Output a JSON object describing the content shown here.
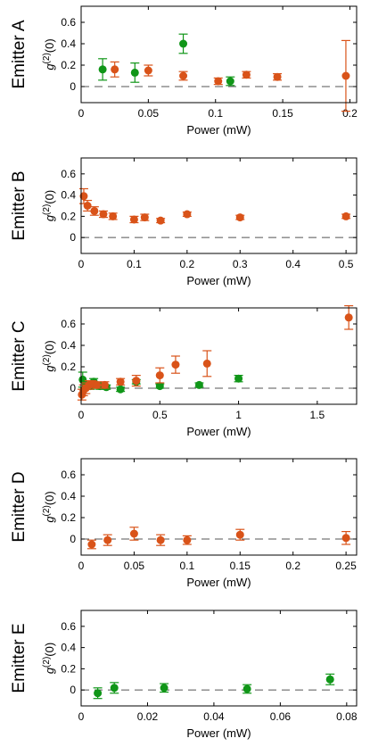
{
  "colors": {
    "orange": "#d95319",
    "green": "#109618",
    "baseline": "#555555"
  },
  "chart_data": [
    {
      "type": "scatter",
      "panel": "Emitter A",
      "xlabel": "Power (mW)",
      "ylabel": "g(2)(0)",
      "xlim": [
        0,
        0.205
      ],
      "ylim": [
        -0.15,
        0.75
      ],
      "xticks": [
        0,
        0.05,
        0.1,
        0.15,
        0.2
      ],
      "xtick_labels": [
        "0",
        "0.05",
        "0.1",
        "0.15",
        "0.2"
      ],
      "yticks": [
        0,
        0.2,
        0.4,
        0.6
      ],
      "ytick_labels": [
        "0",
        "0.2",
        "0.4",
        "0.6"
      ],
      "baseline": 0,
      "series": [
        {
          "color": "green",
          "points": [
            {
              "x": 0.016,
              "y": 0.16,
              "err": 0.1
            },
            {
              "x": 0.04,
              "y": 0.13,
              "err": 0.09
            },
            {
              "x": 0.076,
              "y": 0.4,
              "err": 0.09
            },
            {
              "x": 0.111,
              "y": 0.05,
              "err": 0.04
            }
          ]
        },
        {
          "color": "orange",
          "points": [
            {
              "x": 0.025,
              "y": 0.16,
              "err": 0.07
            },
            {
              "x": 0.05,
              "y": 0.15,
              "err": 0.05
            },
            {
              "x": 0.076,
              "y": 0.1,
              "err": 0.04
            },
            {
              "x": 0.102,
              "y": 0.05,
              "err": 0.03
            },
            {
              "x": 0.123,
              "y": 0.11,
              "err": 0.03
            },
            {
              "x": 0.146,
              "y": 0.09,
              "err": 0.03
            },
            {
              "x": 0.197,
              "y": 0.1,
              "err": 0.33
            }
          ]
        }
      ]
    },
    {
      "type": "scatter",
      "panel": "Emitter B",
      "xlabel": "Power (mW)",
      "ylabel": "g(2)(0)",
      "xlim": [
        0,
        0.52
      ],
      "ylim": [
        -0.15,
        0.75
      ],
      "xticks": [
        0,
        0.1,
        0.2,
        0.3,
        0.4,
        0.5
      ],
      "xtick_labels": [
        "0",
        "0.1",
        "0.2",
        "0.3",
        "0.4",
        "0.5"
      ],
      "yticks": [
        0,
        0.2,
        0.4,
        0.6
      ],
      "ytick_labels": [
        "0",
        "0.2",
        "0.4",
        "0.6"
      ],
      "baseline": 0,
      "series": [
        {
          "color": "orange",
          "points": [
            {
              "x": 0.005,
              "y": 0.39,
              "err": 0.07
            },
            {
              "x": 0.012,
              "y": 0.3,
              "err": 0.05
            },
            {
              "x": 0.025,
              "y": 0.25,
              "err": 0.04
            },
            {
              "x": 0.042,
              "y": 0.22,
              "err": 0.03
            },
            {
              "x": 0.06,
              "y": 0.2,
              "err": 0.03
            },
            {
              "x": 0.1,
              "y": 0.17,
              "err": 0.03
            },
            {
              "x": 0.12,
              "y": 0.19,
              "err": 0.03
            },
            {
              "x": 0.15,
              "y": 0.16,
              "err": 0.02
            },
            {
              "x": 0.2,
              "y": 0.22,
              "err": 0.02
            },
            {
              "x": 0.3,
              "y": 0.19,
              "err": 0.02
            },
            {
              "x": 0.5,
              "y": 0.2,
              "err": 0.02
            }
          ]
        }
      ]
    },
    {
      "type": "scatter",
      "panel": "Emitter C",
      "xlabel": "Power (mW)",
      "ylabel": "g(2)(0)",
      "xlim": [
        0,
        1.75
      ],
      "ylim": [
        -0.15,
        0.75
      ],
      "xticks": [
        0,
        0.5,
        1,
        1.5
      ],
      "xtick_labels": [
        "0",
        "0.5",
        "1",
        "1.5"
      ],
      "yticks": [
        0,
        0.2,
        0.4,
        0.6
      ],
      "ytick_labels": [
        "0",
        "0.2",
        "0.4",
        "0.6"
      ],
      "baseline": 0,
      "series": [
        {
          "color": "green",
          "points": [
            {
              "x": 0.01,
              "y": 0.08,
              "err": 0.07
            },
            {
              "x": 0.03,
              "y": 0.03,
              "err": 0.04
            },
            {
              "x": 0.06,
              "y": 0.02,
              "err": 0.03
            },
            {
              "x": 0.08,
              "y": 0.06,
              "err": 0.03
            },
            {
              "x": 0.12,
              "y": 0.02,
              "err": 0.03
            },
            {
              "x": 0.16,
              "y": 0.01,
              "err": 0.02
            },
            {
              "x": 0.25,
              "y": -0.01,
              "err": 0.02
            },
            {
              "x": 0.35,
              "y": 0.06,
              "err": 0.02
            },
            {
              "x": 0.5,
              "y": 0.02,
              "err": 0.02
            },
            {
              "x": 0.75,
              "y": 0.03,
              "err": 0.02
            },
            {
              "x": 1.0,
              "y": 0.09,
              "err": 0.03
            }
          ]
        },
        {
          "color": "orange",
          "points": [
            {
              "x": 0.005,
              "y": -0.06,
              "err": 0.05
            },
            {
              "x": 0.015,
              "y": -0.02,
              "err": 0.05
            },
            {
              "x": 0.03,
              "y": 0.0,
              "err": 0.05
            },
            {
              "x": 0.05,
              "y": 0.03,
              "err": 0.04
            },
            {
              "x": 0.07,
              "y": 0.04,
              "err": 0.03
            },
            {
              "x": 0.1,
              "y": 0.03,
              "err": 0.03
            },
            {
              "x": 0.15,
              "y": 0.03,
              "err": 0.03
            },
            {
              "x": 0.25,
              "y": 0.06,
              "err": 0.03
            },
            {
              "x": 0.35,
              "y": 0.07,
              "err": 0.05
            },
            {
              "x": 0.5,
              "y": 0.12,
              "err": 0.07
            },
            {
              "x": 0.6,
              "y": 0.22,
              "err": 0.08
            },
            {
              "x": 0.8,
              "y": 0.23,
              "err": 0.12
            },
            {
              "x": 1.7,
              "y": 0.66,
              "err": 0.11
            }
          ]
        }
      ]
    },
    {
      "type": "scatter",
      "panel": "Emitter D",
      "xlabel": "Power (mW)",
      "ylabel": "g(2)(0)",
      "xlim": [
        0,
        0.26
      ],
      "ylim": [
        -0.15,
        0.75
      ],
      "xticks": [
        0,
        0.05,
        0.1,
        0.15,
        0.2,
        0.25
      ],
      "xtick_labels": [
        "0",
        "0.05",
        "0.1",
        "0.15",
        "0.2",
        "0.25"
      ],
      "yticks": [
        0,
        0.2,
        0.4,
        0.6
      ],
      "ytick_labels": [
        "0",
        "0.2",
        "0.4",
        "0.6"
      ],
      "baseline": 0,
      "series": [
        {
          "color": "orange",
          "points": [
            {
              "x": 0.01,
              "y": -0.05,
              "err": 0.04
            },
            {
              "x": 0.025,
              "y": -0.01,
              "err": 0.05
            },
            {
              "x": 0.05,
              "y": 0.05,
              "err": 0.06
            },
            {
              "x": 0.075,
              "y": -0.01,
              "err": 0.05
            },
            {
              "x": 0.1,
              "y": -0.01,
              "err": 0.04
            },
            {
              "x": 0.15,
              "y": 0.04,
              "err": 0.05
            },
            {
              "x": 0.25,
              "y": 0.01,
              "err": 0.06
            }
          ]
        }
      ]
    },
    {
      "type": "scatter",
      "panel": "Emitter E",
      "xlabel": "Power (mW)",
      "ylabel": "g(2)(0)",
      "xlim": [
        0,
        0.083
      ],
      "ylim": [
        -0.15,
        0.75
      ],
      "xticks": [
        0,
        0.02,
        0.04,
        0.06,
        0.08
      ],
      "xtick_labels": [
        "0",
        "0.02",
        "0.04",
        "0.06",
        "0.08"
      ],
      "yticks": [
        0,
        0.2,
        0.4,
        0.6
      ],
      "ytick_labels": [
        "0",
        "0.2",
        "0.4",
        "0.6"
      ],
      "baseline": 0,
      "series": [
        {
          "color": "green",
          "points": [
            {
              "x": 0.005,
              "y": -0.03,
              "err": 0.05
            },
            {
              "x": 0.01,
              "y": 0.02,
              "err": 0.05
            },
            {
              "x": 0.025,
              "y": 0.02,
              "err": 0.04
            },
            {
              "x": 0.05,
              "y": 0.01,
              "err": 0.04
            },
            {
              "x": 0.075,
              "y": 0.1,
              "err": 0.05
            }
          ]
        }
      ]
    }
  ]
}
